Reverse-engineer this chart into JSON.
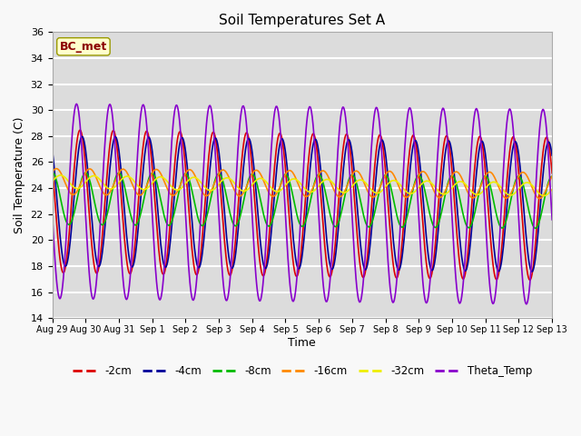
{
  "title": "Soil Temperatures Set A",
  "xlabel": "Time",
  "ylabel": "Soil Temperature (C)",
  "ylim": [
    14,
    36
  ],
  "yticks": [
    14,
    16,
    18,
    20,
    22,
    24,
    26,
    28,
    30,
    32,
    34,
    36
  ],
  "bg_color": "#dcdcdc",
  "grid_color": "#ffffff",
  "annotation": "BC_met",
  "annotation_color": "#8B0000",
  "annotation_bg": "#ffffcc",
  "lines": {
    "-2cm": {
      "color": "#dd0000",
      "lw": 1.2
    },
    "-4cm": {
      "color": "#000099",
      "lw": 1.2
    },
    "-8cm": {
      "color": "#00bb00",
      "lw": 1.2
    },
    "-16cm": {
      "color": "#ff8800",
      "lw": 1.2
    },
    "-32cm": {
      "color": "#eeee00",
      "lw": 1.2
    },
    "Theta_Temp": {
      "color": "#8800cc",
      "lw": 1.2
    }
  },
  "legend_ncol": 6,
  "n_days": 15,
  "samples_per_day": 48,
  "base_temps": {
    "-2cm": 23.0,
    "-4cm": 23.0,
    "-8cm": 23.2,
    "-16cm": 24.5,
    "-32cm": 24.5,
    "Theta_Temp": 23.0
  },
  "amplitudes": {
    "-2cm": 5.5,
    "-4cm": 5.0,
    "-8cm": 2.0,
    "-16cm": 1.0,
    "-32cm": 0.5,
    "Theta_Temp": 7.5
  },
  "phase_shifts_hours": {
    "-2cm": 0.0,
    "-4cm": 1.5,
    "-8cm": 4.0,
    "-16cm": 7.0,
    "-32cm": 10.0,
    "Theta_Temp": -2.5
  },
  "drift": {
    "-2cm": -0.04,
    "-4cm": -0.03,
    "-8cm": -0.02,
    "-16cm": -0.02,
    "-32cm": -0.04,
    "Theta_Temp": -0.03
  },
  "xticklabels": [
    "Aug 29",
    "Aug 30",
    "Aug 31",
    "Sep 1",
    "Sep 2",
    "Sep 3",
    "Sep 4",
    "Sep 5",
    "Sep 6",
    "Sep 7",
    "Sep 8",
    "Sep 9",
    "Sep 10",
    "Sep 11",
    "Sep 12",
    "Sep 13"
  ],
  "figsize": [
    6.4,
    4.8
  ],
  "dpi": 100
}
